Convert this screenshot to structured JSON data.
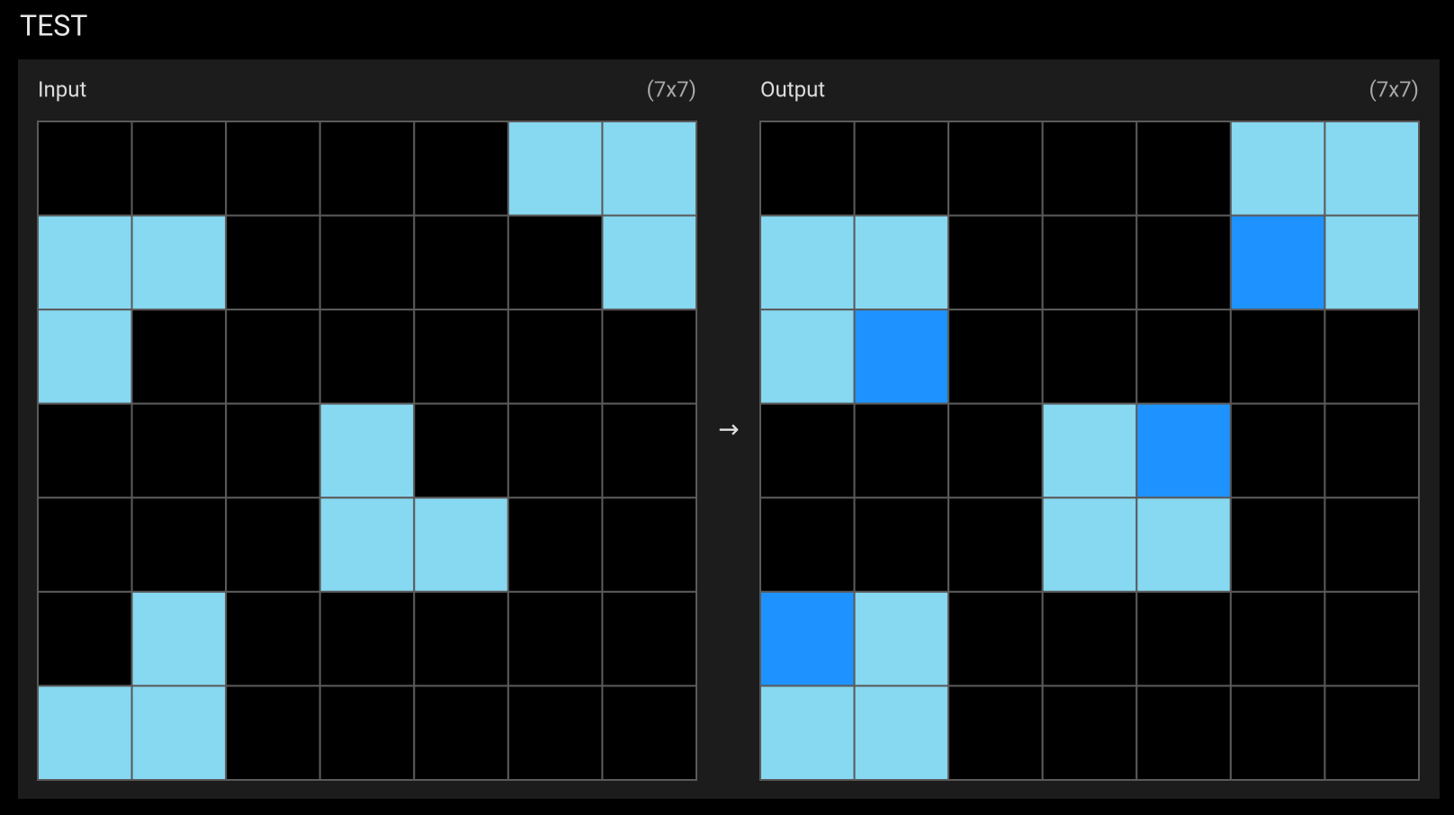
{
  "title": "TEST",
  "input": {
    "label": "Input",
    "size": "(7x7)",
    "grid": [
      [
        0,
        0,
        0,
        0,
        0,
        8,
        8
      ],
      [
        8,
        8,
        0,
        0,
        0,
        0,
        8
      ],
      [
        8,
        0,
        0,
        0,
        0,
        0,
        0
      ],
      [
        0,
        0,
        0,
        8,
        0,
        0,
        0
      ],
      [
        0,
        0,
        0,
        8,
        8,
        0,
        0
      ],
      [
        0,
        8,
        0,
        0,
        0,
        0,
        0
      ],
      [
        8,
        8,
        0,
        0,
        0,
        0,
        0
      ]
    ]
  },
  "arrow": "→",
  "output": {
    "label": "Output",
    "size": "(7x7)",
    "grid": [
      [
        0,
        0,
        0,
        0,
        0,
        8,
        8
      ],
      [
        8,
        8,
        0,
        0,
        0,
        1,
        8
      ],
      [
        8,
        1,
        0,
        0,
        0,
        0,
        0
      ],
      [
        0,
        0,
        0,
        8,
        1,
        0,
        0
      ],
      [
        0,
        0,
        0,
        8,
        8,
        0,
        0
      ],
      [
        1,
        8,
        0,
        0,
        0,
        0,
        0
      ],
      [
        8,
        8,
        0,
        0,
        0,
        0,
        0
      ]
    ]
  },
  "palette": {
    "0": "#000000",
    "1": "#1e93ff",
    "8": "#87d8f1"
  }
}
